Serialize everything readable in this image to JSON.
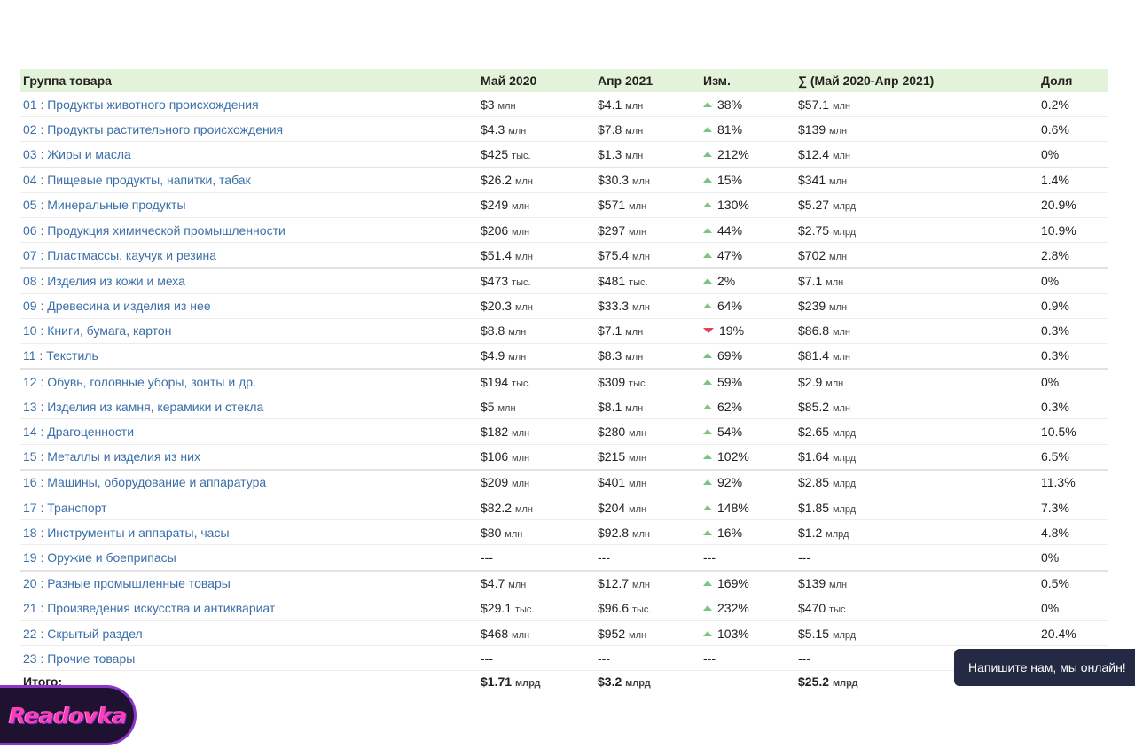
{
  "table": {
    "headers": {
      "group": "Группа товара",
      "may2020": "Май 2020",
      "apr2021": "Апр 2021",
      "change": "Изм.",
      "sum": "∑ (Май 2020-Апр 2021)",
      "share": "Доля"
    },
    "rows": [
      {
        "group": "01 : Продукты животного происхождения",
        "may_val": "$3",
        "may_unit": "млн",
        "apr_val": "$4.1",
        "apr_unit": "млн",
        "dir": "up",
        "change": "38%",
        "sum_val": "$57.1",
        "sum_unit": "млн",
        "share": "0.2%"
      },
      {
        "group": "02 : Продукты растительного происхождения",
        "may_val": "$4.3",
        "may_unit": "млн",
        "apr_val": "$7.8",
        "apr_unit": "млн",
        "dir": "up",
        "change": "81%",
        "sum_val": "$139",
        "sum_unit": "млн",
        "share": "0.6%"
      },
      {
        "group": "03 : Жиры и масла",
        "may_val": "$425",
        "may_unit": "тыс.",
        "apr_val": "$1.3",
        "apr_unit": "млн",
        "dir": "up",
        "change": "212%",
        "sum_val": "$12.4",
        "sum_unit": "млн",
        "share": "0%"
      },
      {
        "group": "04 : Пищевые продукты, напитки, табак",
        "may_val": "$26.2",
        "may_unit": "млн",
        "apr_val": "$30.3",
        "apr_unit": "млн",
        "dir": "up",
        "change": "15%",
        "sum_val": "$341",
        "sum_unit": "млн",
        "share": "1.4%"
      },
      {
        "group": "05 : Минеральные продукты",
        "may_val": "$249",
        "may_unit": "млн",
        "apr_val": "$571",
        "apr_unit": "млн",
        "dir": "up",
        "change": "130%",
        "sum_val": "$5.27",
        "sum_unit": "млрд",
        "share": "20.9%"
      },
      {
        "group": "06 : Продукция химической промышленности",
        "may_val": "$206",
        "may_unit": "млн",
        "apr_val": "$297",
        "apr_unit": "млн",
        "dir": "up",
        "change": "44%",
        "sum_val": "$2.75",
        "sum_unit": "млрд",
        "share": "10.9%"
      },
      {
        "group": "07 : Пластмассы, каучук и резина",
        "may_val": "$51.4",
        "may_unit": "млн",
        "apr_val": "$75.4",
        "apr_unit": "млн",
        "dir": "up",
        "change": "47%",
        "sum_val": "$702",
        "sum_unit": "млн",
        "share": "2.8%"
      },
      {
        "group": "08 : Изделия из кожи и меха",
        "may_val": "$473",
        "may_unit": "тыс.",
        "apr_val": "$481",
        "apr_unit": "тыс.",
        "dir": "up",
        "change": "2%",
        "sum_val": "$7.1",
        "sum_unit": "млн",
        "share": "0%"
      },
      {
        "group": "09 : Древесина и изделия из нее",
        "may_val": "$20.3",
        "may_unit": "млн",
        "apr_val": "$33.3",
        "apr_unit": "млн",
        "dir": "up",
        "change": "64%",
        "sum_val": "$239",
        "sum_unit": "млн",
        "share": "0.9%"
      },
      {
        "group": "10 : Книги, бумага, картон",
        "may_val": "$8.8",
        "may_unit": "млн",
        "apr_val": "$7.1",
        "apr_unit": "млн",
        "dir": "down",
        "change": "19%",
        "sum_val": "$86.8",
        "sum_unit": "млн",
        "share": "0.3%"
      },
      {
        "group": "11 : Текстиль",
        "may_val": "$4.9",
        "may_unit": "млн",
        "apr_val": "$8.3",
        "apr_unit": "млн",
        "dir": "up",
        "change": "69%",
        "sum_val": "$81.4",
        "sum_unit": "млн",
        "share": "0.3%"
      },
      {
        "group": "12 : Обувь, головные уборы, зонты и др.",
        "may_val": "$194",
        "may_unit": "тыс.",
        "apr_val": "$309",
        "apr_unit": "тыс.",
        "dir": "up",
        "change": "59%",
        "sum_val": "$2.9",
        "sum_unit": "млн",
        "share": "0%"
      },
      {
        "group": "13 : Изделия из камня, керамики и стекла",
        "may_val": "$5",
        "may_unit": "млн",
        "apr_val": "$8.1",
        "apr_unit": "млн",
        "dir": "up",
        "change": "62%",
        "sum_val": "$85.2",
        "sum_unit": "млн",
        "share": "0.3%"
      },
      {
        "group": "14 : Драгоценности",
        "may_val": "$182",
        "may_unit": "млн",
        "apr_val": "$280",
        "apr_unit": "млн",
        "dir": "up",
        "change": "54%",
        "sum_val": "$2.65",
        "sum_unit": "млрд",
        "share": "10.5%"
      },
      {
        "group": "15 : Металлы и изделия из них",
        "may_val": "$106",
        "may_unit": "млн",
        "apr_val": "$215",
        "apr_unit": "млн",
        "dir": "up",
        "change": "102%",
        "sum_val": "$1.64",
        "sum_unit": "млрд",
        "share": "6.5%"
      },
      {
        "group": "16 : Машины, оборудование и аппаратура",
        "may_val": "$209",
        "may_unit": "млн",
        "apr_val": "$401",
        "apr_unit": "млн",
        "dir": "up",
        "change": "92%",
        "sum_val": "$2.85",
        "sum_unit": "млрд",
        "share": "11.3%"
      },
      {
        "group": "17 : Транспорт",
        "may_val": "$82.2",
        "may_unit": "млн",
        "apr_val": "$204",
        "apr_unit": "млн",
        "dir": "up",
        "change": "148%",
        "sum_val": "$1.85",
        "sum_unit": "млрд",
        "share": "7.3%"
      },
      {
        "group": "18 : Инструменты и аппараты, часы",
        "may_val": "$80",
        "may_unit": "млн",
        "apr_val": "$92.8",
        "apr_unit": "млн",
        "dir": "up",
        "change": "16%",
        "sum_val": "$1.2",
        "sum_unit": "млрд",
        "share": "4.8%"
      },
      {
        "group": "19 : Оружие и боеприпасы",
        "may_val": "---",
        "may_unit": "",
        "apr_val": "---",
        "apr_unit": "",
        "dir": "none",
        "change": "---",
        "sum_val": "---",
        "sum_unit": "",
        "share": "0%"
      },
      {
        "group": "20 : Разные промышленные товары",
        "may_val": "$4.7",
        "may_unit": "млн",
        "apr_val": "$12.7",
        "apr_unit": "млн",
        "dir": "up",
        "change": "169%",
        "sum_val": "$139",
        "sum_unit": "млн",
        "share": "0.5%"
      },
      {
        "group": "21 : Произведения искусства и антиквариат",
        "may_val": "$29.1",
        "may_unit": "тыс.",
        "apr_val": "$96.6",
        "apr_unit": "тыс.",
        "dir": "up",
        "change": "232%",
        "sum_val": "$470",
        "sum_unit": "тыс.",
        "share": "0%"
      },
      {
        "group": "22 : Скрытый раздел",
        "may_val": "$468",
        "may_unit": "млн",
        "apr_val": "$952",
        "apr_unit": "млн",
        "dir": "up",
        "change": "103%",
        "sum_val": "$5.15",
        "sum_unit": "млрд",
        "share": "20.4%"
      },
      {
        "group": "23 : Прочие товары",
        "may_val": "---",
        "may_unit": "",
        "apr_val": "---",
        "apr_unit": "",
        "dir": "none",
        "change": "---",
        "sum_val": "---",
        "sum_unit": "",
        "share": ""
      }
    ],
    "total": {
      "label": "Итого:",
      "may_val": "$1.71",
      "may_unit": "млрд",
      "apr_val": "$3.2",
      "apr_unit": "млрд",
      "sum_val": "$25.2",
      "sum_unit": "млрд"
    }
  },
  "chat_widget": {
    "text": "Напишите нам, мы онлайн!"
  },
  "logo": {
    "text": "Readovka"
  },
  "colors": {
    "header_bg": "#e3f3d9",
    "link": "#3b6fa8",
    "arrow_up": "#7bc47f",
    "arrow_down": "#e0455c",
    "chat_bg": "#252a44",
    "logo_accent": "#ff3fb0"
  },
  "icons": {
    "up": "triangle-up-icon",
    "down": "triangle-down-icon"
  }
}
